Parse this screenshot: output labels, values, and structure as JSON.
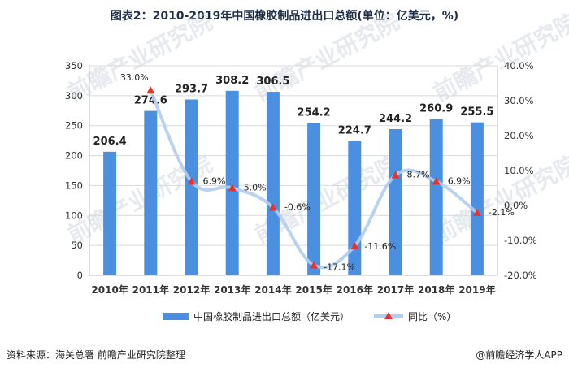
{
  "header": {
    "title": "图表2：2010-2019年中国橡胶制品进出口总额(单位：亿美元，%)"
  },
  "footer": {
    "source": "资料来源：海关总署 前瞻产业研究院整理",
    "brand": "@前瞻经济学人APP"
  },
  "watermark": {
    "text": "前瞻产业研究院"
  },
  "colors": {
    "bar": "#4b8fe0",
    "line": "#b3cdee",
    "marker": "#e8322c",
    "grid": "#d9d9d9",
    "axis": "#bfbfbf"
  },
  "chart_data": {
    "type": "bar",
    "categories": [
      "2010年",
      "2011年",
      "2012年",
      "2013年",
      "2014年",
      "2015年",
      "2016年",
      "2017年",
      "2018年",
      "2019年"
    ],
    "series": [
      {
        "name": "中国橡胶制品进出口总额（亿美元）",
        "type": "bar",
        "axis": "left",
        "values": [
          206.4,
          274.6,
          293.7,
          308.2,
          306.5,
          254.2,
          224.7,
          244.2,
          260.9,
          255.5
        ],
        "labels": [
          "206.4",
          "274.6",
          "293.7",
          "308.2",
          "306.5",
          "254.2",
          "224.7",
          "244.2",
          "260.9",
          "255.5"
        ]
      },
      {
        "name": "同比（%）",
        "type": "line",
        "axis": "right",
        "values": [
          null,
          33.0,
          6.9,
          5.0,
          -0.6,
          -17.1,
          -11.6,
          8.7,
          6.9,
          -2.1
        ],
        "labels": [
          "",
          "33.0%",
          "6.9%",
          "5.0%",
          "-0.6%",
          "-17.1%",
          "-11.6%",
          "8.7%",
          "6.9%",
          "-2.1%"
        ]
      }
    ],
    "y_left": {
      "min": 0,
      "max": 350,
      "ticks": [
        "0",
        "50",
        "100",
        "150",
        "200",
        "250",
        "300",
        "350"
      ]
    },
    "y_right": {
      "min": -20,
      "max": 40,
      "ticks": [
        "-20.0%",
        "-10.0%",
        "0.0%",
        "10.0%",
        "20.0%",
        "30.0%",
        "40.0%"
      ]
    },
    "grid": true,
    "legend": {
      "position": "bottom"
    }
  }
}
